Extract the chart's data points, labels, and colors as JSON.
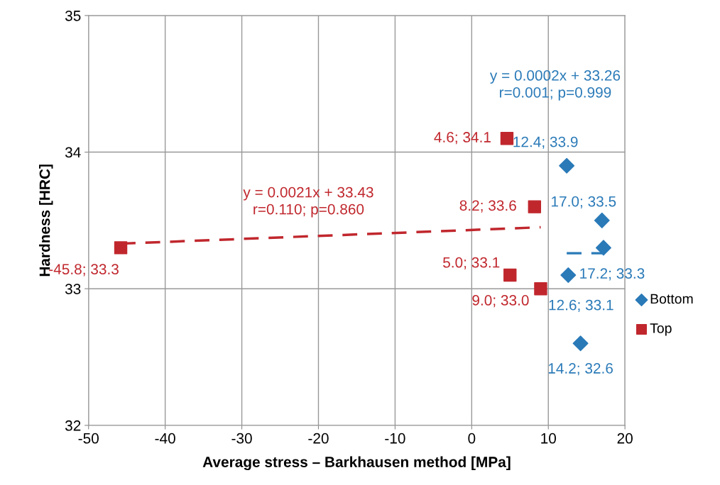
{
  "chart_data": {
    "type": "scatter",
    "xlabel": "Average stress – Barkhausen method [MPa]",
    "ylabel": "Hardness [HRC]",
    "xlim": [
      -50,
      20
    ],
    "xticks": [
      -50,
      -40,
      -30,
      -20,
      -10,
      0,
      10,
      20
    ],
    "ylim": [
      32,
      35
    ],
    "yticks": [
      32,
      33,
      34,
      35
    ],
    "grid": true,
    "legend": "right",
    "series": [
      {
        "name": "Bottom",
        "marker": "diamond",
        "color": "#2a7ab8",
        "x": [
          12.4,
          17.0,
          17.2,
          12.6,
          14.2
        ],
        "values": [
          33.9,
          33.5,
          33.3,
          33.1,
          32.6
        ],
        "value_labels": [
          "12.4; 33.9",
          "17.0; 33.5",
          "17.2; 33.3",
          "12.6; 33.1",
          "14.2; 32.6"
        ]
      },
      {
        "name": "Top",
        "marker": "square",
        "color": "#c0272d",
        "x": [
          -45.8,
          4.6,
          8.2,
          5.0,
          9.0
        ],
        "values": [
          33.3,
          34.1,
          33.6,
          33.1,
          33.0
        ],
        "value_labels": [
          "-45.8; 33.3",
          "4.6; 34.1",
          "8.2; 33.6",
          "5.0; 33.1",
          "9.0; 33.0"
        ]
      },
      {
        "type": "line",
        "line_style": "dashed",
        "color": "#2a7ab8",
        "x": [
          12.4,
          17.2
        ],
        "values": [
          33.26,
          33.26
        ]
      },
      {
        "type": "line",
        "line_style": "dashed",
        "color": "#c0272d",
        "x": [
          -45.8,
          9.0
        ],
        "values": [
          33.33,
          33.45
        ]
      }
    ],
    "annotations": [
      "y = 0.0002x + 33.26\nr=0.001; p=0.999",
      "y = 0.0021x + 33.43\nr=0.110; p=0.860"
    ]
  }
}
